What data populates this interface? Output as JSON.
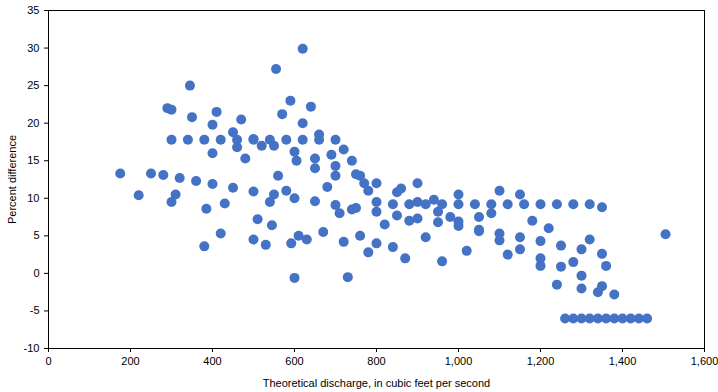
{
  "chart_data": {
    "type": "scatter",
    "x_label": "Theoretical discharge, in cubic feet per second",
    "y_label": "Percent difference",
    "color": "#4472c4",
    "marker": "circle",
    "grid": false,
    "xlim": [
      0,
      1600
    ],
    "ylim": [
      -10,
      35
    ],
    "xticks": [
      0,
      200,
      400,
      600,
      800,
      {
        "value": 1000,
        "label": "1,000"
      },
      {
        "value": 1200,
        "label": "1,200"
      },
      {
        "value": 1400,
        "label": "1,400"
      },
      {
        "value": 1600,
        "label": "1,600"
      }
    ],
    "yticks": [
      -10,
      -5,
      0,
      5,
      10,
      15,
      20,
      25,
      30,
      35
    ],
    "x": [
      250,
      280,
      320,
      360,
      400,
      450,
      500,
      550,
      600,
      650,
      700,
      750,
      800,
      850,
      900,
      950,
      1000,
      1050,
      1100,
      1150,
      1200,
      1250,
      1300,
      1350,
      290,
      300,
      350,
      400,
      450,
      500,
      550,
      600,
      650,
      700,
      750,
      800,
      850,
      900,
      950,
      1000,
      1050,
      1100,
      1150,
      1200,
      1250,
      1300,
      1350,
      1380,
      300,
      340,
      380,
      420,
      460,
      500,
      540,
      580,
      620,
      660,
      700,
      720,
      740,
      760,
      780,
      800,
      840,
      880,
      920,
      960,
      1000,
      1040,
      1080,
      1120,
      1160,
      1200,
      1240,
      1280,
      1320,
      1350,
      1260,
      1280,
      1300,
      1320,
      1340,
      1360,
      1380,
      1400,
      1420,
      1440,
      1460,
      300,
      310,
      380,
      385,
      400,
      410,
      420,
      430,
      460,
      470,
      480,
      500,
      510,
      520,
      530,
      540,
      545,
      560,
      570,
      580,
      590,
      592,
      600,
      605,
      610,
      620,
      630,
      640,
      650,
      660,
      670,
      680,
      690,
      700,
      710,
      720,
      730,
      740,
      760,
      770,
      780,
      800,
      820,
      840,
      860,
      870,
      880,
      900,
      920,
      940,
      960,
      980,
      1000,
      1020,
      1050,
      1080,
      1100,
      1120,
      1150,
      1180,
      1200,
      1220,
      1240,
      1280,
      1300,
      1320,
      1340,
      1360,
      345,
      555,
      620,
      175,
      220,
      1505
    ],
    "values": [
      13.3,
      13.1,
      12.7,
      12.3,
      11.9,
      11.4,
      10.9,
      10.5,
      10.0,
      9.6,
      9.1,
      8.7,
      8.2,
      7.7,
      7.3,
      6.8,
      6.3,
      5.8,
      5.3,
      4.8,
      4.3,
      3.7,
      3.2,
      2.6,
      22.0,
      21.8,
      20.8,
      19.8,
      18.8,
      17.9,
      17.0,
      16.2,
      15.3,
      14.3,
      13.2,
      12.0,
      10.8,
      9.5,
      8.2,
      6.9,
      5.6,
      4.4,
      3.2,
      2.0,
      0.9,
      -0.3,
      -1.7,
      -2.8,
      17.8,
      17.8,
      17.8,
      17.8,
      17.8,
      17.8,
      17.8,
      17.8,
      17.8,
      17.8,
      17.8,
      16.5,
      15.0,
      13.0,
      11.0,
      9.5,
      9.2,
      9.2,
      9.2,
      9.2,
      9.2,
      9.2,
      9.2,
      9.2,
      9.2,
      9.2,
      9.2,
      9.2,
      9.2,
      8.8,
      -6,
      -6,
      -6,
      -6,
      -6,
      -6,
      -6,
      -6,
      -6,
      -6,
      -6,
      9.5,
      10.5,
      3.6,
      8.6,
      16,
      21.5,
      5.3,
      9.3,
      16.8,
      20.5,
      15.3,
      4.5,
      7.2,
      17,
      3.8,
      9.5,
      6.4,
      13,
      21.2,
      11,
      23,
      4,
      -0.6,
      15,
      5,
      20,
      4.5,
      22.2,
      14,
      18.5,
      5.5,
      11.5,
      15.8,
      13,
      8,
      4.2,
      -0.5,
      8.5,
      5,
      12,
      2.8,
      4,
      6.5,
      3.5,
      11.3,
      2,
      7,
      12,
      4.8,
      9.8,
      1.6,
      7.5,
      10.5,
      3,
      7.5,
      8,
      11,
      2.5,
      10.5,
      7,
      1,
      6,
      -1.5,
      1.5,
      -2,
      4.5,
      -2.5,
      1,
      25,
      27.2,
      29.9,
      13.3,
      10.4,
      5.2
    ]
  }
}
